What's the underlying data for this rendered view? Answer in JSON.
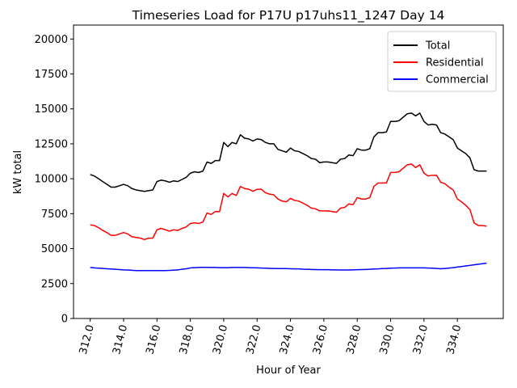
{
  "chart_data": {
    "type": "line",
    "title": "Timeseries Load for P17U p17uhs11_1247  Day 14",
    "xlabel": "Hour of Year",
    "ylabel": "kW total",
    "xlim": [
      311,
      336.75
    ],
    "ylim": [
      0,
      21000
    ],
    "xticks": [
      312,
      314,
      316,
      318,
      320,
      322,
      324,
      326,
      328,
      330,
      332,
      334
    ],
    "xtick_labels": [
      "312.0",
      "314.0",
      "316.0",
      "318.0",
      "320.0",
      "322.0",
      "324.0",
      "326.0",
      "328.0",
      "330.0",
      "332.0",
      "334.0"
    ],
    "yticks": [
      0,
      2500,
      5000,
      7500,
      10000,
      12500,
      15000,
      17500,
      20000
    ],
    "ytick_labels": [
      "0",
      "2500",
      "5000",
      "7500",
      "10000",
      "12500",
      "15000",
      "17500",
      "20000"
    ],
    "legend_position": "top-right",
    "x_start": 312,
    "x_step": 0.25,
    "series": [
      {
        "name": "Total",
        "color": "#000000",
        "values": [
          10300,
          10200,
          10000,
          9800,
          9600,
          9400,
          9400,
          9500,
          9600,
          9500,
          9300,
          9200,
          9150,
          9100,
          9150,
          9200,
          9800,
          9900,
          9850,
          9750,
          9850,
          9800,
          9950,
          10100,
          10400,
          10500,
          10450,
          10550,
          11200,
          11100,
          11300,
          11300,
          12600,
          12300,
          12600,
          12500,
          13150,
          12900,
          12850,
          12700,
          12850,
          12800,
          12600,
          12500,
          12500,
          12100,
          12000,
          11900,
          12200,
          12000,
          11950,
          11800,
          11650,
          11450,
          11400,
          11150,
          11200,
          11200,
          11150,
          11100,
          11400,
          11450,
          11700,
          11650,
          12150,
          12050,
          12050,
          12150,
          13000,
          13300,
          13300,
          13350,
          14100,
          14100,
          14150,
          14400,
          14650,
          14700,
          14500,
          14700,
          14100,
          13850,
          13900,
          13850,
          13300,
          13200,
          13000,
          12800,
          12200,
          12000,
          11800,
          11500,
          10650,
          10550,
          10550,
          10550
        ]
      },
      {
        "name": "Residential",
        "color": "#ff0000",
        "values": [
          6700,
          6650,
          6500,
          6300,
          6150,
          5950,
          5950,
          6050,
          6150,
          6050,
          5850,
          5800,
          5750,
          5650,
          5750,
          5750,
          6350,
          6450,
          6350,
          6250,
          6350,
          6300,
          6450,
          6550,
          6800,
          6850,
          6800,
          6900,
          7550,
          7450,
          7650,
          7650,
          8950,
          8700,
          8950,
          8800,
          9450,
          9300,
          9250,
          9100,
          9250,
          9250,
          9000,
          8900,
          8850,
          8550,
          8400,
          8350,
          8600,
          8450,
          8400,
          8250,
          8100,
          7900,
          7850,
          7700,
          7700,
          7700,
          7650,
          7600,
          7900,
          7950,
          8200,
          8150,
          8650,
          8550,
          8550,
          8650,
          9450,
          9700,
          9700,
          9700,
          10450,
          10450,
          10500,
          10750,
          11000,
          11050,
          10800,
          11000,
          10400,
          10200,
          10250,
          10250,
          9750,
          9650,
          9400,
          9200,
          8550,
          8350,
          8100,
          7800,
          6850,
          6650,
          6650,
          6600
        ]
      },
      {
        "name": "Commercial",
        "color": "#0000ff",
        "values": [
          3650,
          3620,
          3600,
          3580,
          3560,
          3540,
          3520,
          3500,
          3480,
          3470,
          3450,
          3430,
          3430,
          3430,
          3430,
          3430,
          3430,
          3430,
          3430,
          3440,
          3460,
          3480,
          3520,
          3560,
          3620,
          3640,
          3650,
          3660,
          3660,
          3650,
          3650,
          3640,
          3640,
          3640,
          3650,
          3650,
          3650,
          3650,
          3640,
          3630,
          3620,
          3610,
          3600,
          3590,
          3580,
          3570,
          3570,
          3570,
          3560,
          3550,
          3550,
          3530,
          3520,
          3510,
          3500,
          3490,
          3490,
          3490,
          3480,
          3480,
          3470,
          3470,
          3470,
          3480,
          3490,
          3500,
          3510,
          3520,
          3540,
          3550,
          3570,
          3580,
          3600,
          3610,
          3620,
          3620,
          3620,
          3620,
          3620,
          3620,
          3620,
          3610,
          3600,
          3580,
          3560,
          3580,
          3610,
          3640,
          3680,
          3720,
          3760,
          3800,
          3840,
          3880,
          3920,
          3960
        ]
      }
    ]
  }
}
